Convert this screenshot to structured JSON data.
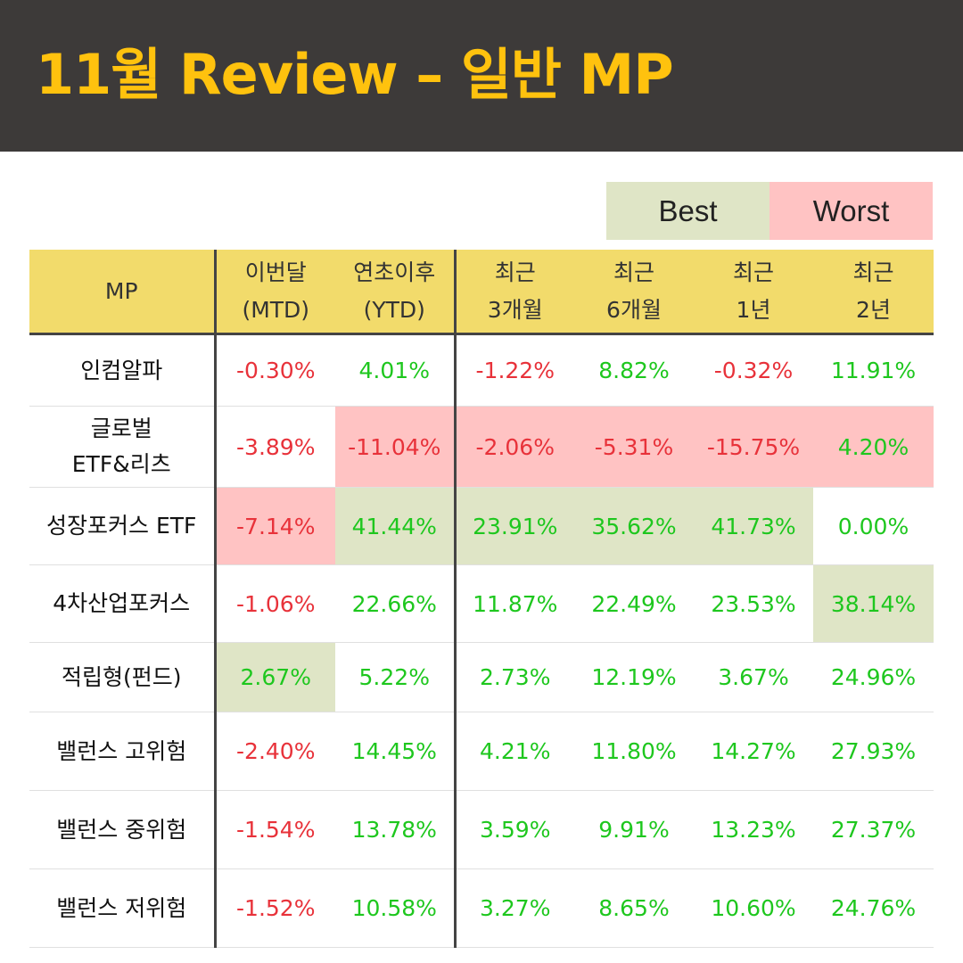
{
  "title": "11월 Review – 일반 MP",
  "legend": {
    "best": "Best",
    "worst": "Worst"
  },
  "colors": {
    "header_bg": "#3d3a39",
    "title": "#ffc20e",
    "best": "#dfe5c6",
    "worst": "#ffc3c3",
    "table_header": "#f2db6b",
    "positive": "#1ec71e",
    "negative": "#e8323a"
  },
  "columns": [
    "MP",
    "이번달\n(MTD)",
    "연초이후\n(YTD)",
    "최근\n3개월",
    "최근\n6개월",
    "최근\n1년",
    "최근\n2년"
  ],
  "rows": [
    {
      "name": "인컴알파",
      "values": [
        "-0.30%",
        "4.01%",
        "-1.22%",
        "8.82%",
        "-0.32%",
        "11.91%"
      ]
    },
    {
      "name": "글로벌\nETF&리츠",
      "values": [
        "-3.89%",
        "-11.04%",
        "-2.06%",
        "-5.31%",
        "-15.75%",
        "4.20%"
      ]
    },
    {
      "name": "성장포커스 ETF",
      "values": [
        "-7.14%",
        "41.44%",
        "23.91%",
        "35.62%",
        "41.73%",
        "0.00%"
      ]
    },
    {
      "name": "4차산업포커스",
      "values": [
        "-1.06%",
        "22.66%",
        "11.87%",
        "22.49%",
        "23.53%",
        "38.14%"
      ]
    },
    {
      "name": "적립형(펀드)",
      "values": [
        "2.67%",
        "5.22%",
        "2.73%",
        "12.19%",
        "3.67%",
        "24.96%"
      ]
    },
    {
      "name": "밸런스 고위험",
      "values": [
        "-2.40%",
        "14.45%",
        "4.21%",
        "11.80%",
        "14.27%",
        "27.93%"
      ]
    },
    {
      "name": "밸런스 중위험",
      "values": [
        "-1.54%",
        "13.78%",
        "3.59%",
        "9.91%",
        "13.23%",
        "27.37%"
      ]
    },
    {
      "name": "밸런스 저위험",
      "values": [
        "-1.52%",
        "10.58%",
        "3.27%",
        "8.65%",
        "10.60%",
        "24.76%"
      ]
    }
  ]
}
